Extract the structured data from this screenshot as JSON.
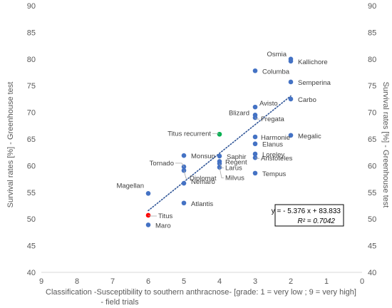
{
  "chart_data": {
    "type": "scatter",
    "title": "",
    "xlabel": "Classification -Susceptibility to southern anthracnose- [grade: 1 = very low ; 9 = very high] - field trials",
    "xlabel_lines": [
      "Classification -Susceptibility to southern anthracnose- [grade: 1 = very low ; 9 = very high]",
      "- field trials"
    ],
    "ylabel": "Survival rates [%] - Greenhouse test",
    "ylabel_right": "Survival rates [%] - Greenhouse test",
    "xlim": [
      9,
      0
    ],
    "x_reversed": true,
    "ylim": [
      40,
      90
    ],
    "xticks": [
      9,
      8,
      7,
      6,
      5,
      4,
      3,
      2,
      1,
      0
    ],
    "yticks": [
      40,
      45,
      50,
      55,
      60,
      65,
      70,
      75,
      80,
      85,
      90
    ],
    "grid": false,
    "colors": {
      "default": "#4472c4",
      "Titus": "#ff0000",
      "Titus recurrent": "#00b050",
      "trendline": "#2f5597"
    },
    "points": [
      {
        "name": "Osmia",
        "x": 2,
        "y": 80.0
      },
      {
        "name": "Kallichore",
        "x": 2,
        "y": 79.6
      },
      {
        "name": "Columba",
        "x": 3,
        "y": 77.8
      },
      {
        "name": "Semperina",
        "x": 2,
        "y": 75.7
      },
      {
        "name": "Carbo",
        "x": 2,
        "y": 72.5
      },
      {
        "name": "Avisto",
        "x": 3,
        "y": 71.0
      },
      {
        "name": "Blizard",
        "x": 3,
        "y": 69.5
      },
      {
        "name": "Fregata",
        "x": 3,
        "y": 69.0
      },
      {
        "name": "Titus recurrent",
        "x": 4,
        "y": 65.9
      },
      {
        "name": "Harmonie",
        "x": 3,
        "y": 65.4
      },
      {
        "name": "Megalic",
        "x": 2,
        "y": 65.7
      },
      {
        "name": "Elanus",
        "x": 3,
        "y": 64.1
      },
      {
        "name": "Loreley",
        "x": 3,
        "y": 62.2
      },
      {
        "name": "Aristoteles",
        "x": 3,
        "y": 61.5
      },
      {
        "name": "Monsun",
        "x": 5,
        "y": 61.9
      },
      {
        "name": "Saphir",
        "x": 4,
        "y": 61.8
      },
      {
        "name": "Regent",
        "x": 4,
        "y": 60.8
      },
      {
        "name": "Larus",
        "x": 4,
        "y": 60.4
      },
      {
        "name": "Milvus",
        "x": 4,
        "y": 59.7
      },
      {
        "name": "Tornado",
        "x": 5,
        "y": 59.8
      },
      {
        "name": "Diplomat",
        "x": 5,
        "y": 59.1
      },
      {
        "name": "Tempus",
        "x": 3,
        "y": 58.6
      },
      {
        "name": "Nemaro",
        "x": 5,
        "y": 56.7
      },
      {
        "name": "Magellan",
        "x": 6,
        "y": 54.8
      },
      {
        "name": "Atlantis",
        "x": 5,
        "y": 53.0
      },
      {
        "name": "Titus",
        "x": 6,
        "y": 50.7
      },
      {
        "name": "Maro",
        "x": 6,
        "y": 48.9
      }
    ],
    "trendline": {
      "slope": -5.376,
      "intercept": 83.833,
      "x_range": [
        6,
        2
      ],
      "style": "dotted"
    },
    "equation": "y = - 5.376 x + 83.833",
    "r2": "R² = 0.7042"
  }
}
